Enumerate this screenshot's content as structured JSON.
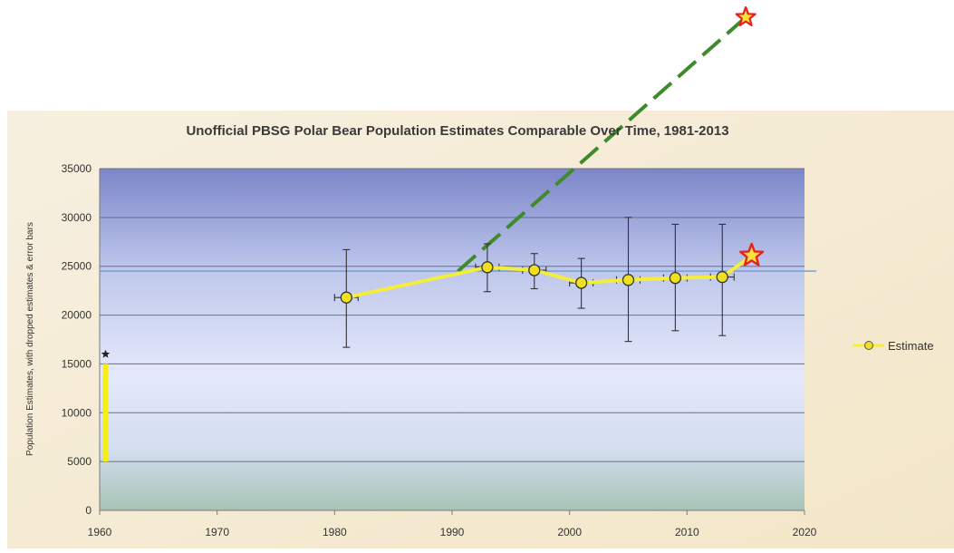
{
  "chart_data": {
    "type": "line",
    "title": "Unofficial PBSG Polar Bear Population Estimates Comparable Over Time, 1981-2013",
    "xlabel": "",
    "ylabel": "Population Estimates, with dropped estimates & error bars",
    "xlim": [
      1960,
      2020
    ],
    "ylim": [
      0,
      35000
    ],
    "x_ticks": [
      1960,
      1970,
      1980,
      1990,
      2000,
      2010,
      2020
    ],
    "y_ticks": [
      0,
      5000,
      10000,
      15000,
      20000,
      25000,
      30000,
      35000
    ],
    "grid": true,
    "legend_position": "right",
    "series": [
      {
        "name": "Estimate",
        "color": "#f4ee3a",
        "marker_color": "#f0e020",
        "points": [
          {
            "x": 1981,
            "y": 21800,
            "y_low": 16700,
            "y_high": 26700
          },
          {
            "x": 1993,
            "y": 24900,
            "y_low": 22400,
            "y_high": 27300
          },
          {
            "x": 1997,
            "y": 24600,
            "y_low": 22700,
            "y_high": 26300
          },
          {
            "x": 2001,
            "y": 23300,
            "y_low": 20700,
            "y_high": 25800
          },
          {
            "x": 2005,
            "y": 23600,
            "y_low": 17300,
            "y_high": 30000
          },
          {
            "x": 2009,
            "y": 23800,
            "y_low": 18400,
            "y_high": 29300
          },
          {
            "x": 2013,
            "y": 23900,
            "y_low": 17900,
            "y_high": 29300
          }
        ],
        "extension": {
          "x": 2015.5,
          "y": 26100
        }
      }
    ],
    "annotations": {
      "early_estimate_range": {
        "x": 1960.5,
        "y_low": 5000,
        "y_high": 15000,
        "color": "#f4ee1a"
      },
      "early_star": {
        "x": 1960.5,
        "y": 16000
      },
      "reference_line": {
        "y": 24500,
        "x_from": 1960,
        "x_to": 2021,
        "color": "#6e9bd6"
      },
      "dashed_projection": {
        "from": {
          "x": 1990.5,
          "y": 24500
        },
        "to": {
          "x": 2015,
          "y": 50500
        },
        "color": "#3f8a2b"
      },
      "top_star": {
        "x": 2015,
        "y": 50500,
        "color": "#e82020"
      },
      "end_star": {
        "x": 2015.5,
        "y": 26100,
        "color": "#e82020"
      }
    }
  }
}
